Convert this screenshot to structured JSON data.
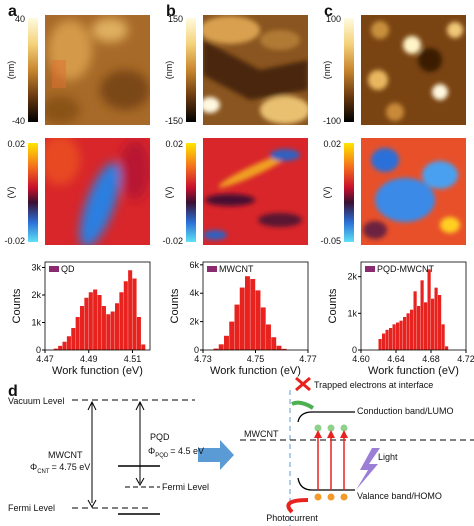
{
  "panels": [
    {
      "label": "a",
      "height_bar": {
        "ticks": [
          40,
          -40
        ],
        "unit": "(nm)"
      },
      "potential_bar": {
        "ticks": [
          0.02,
          -0.02
        ],
        "unit": "(V)"
      },
      "histogram": {
        "legend": "QD",
        "ylabel": "Counts",
        "xlabel": "Work function (eV)",
        "color": "#e8231f",
        "legend_color": "#8b2a6e",
        "xlim": [
          4.47,
          4.518
        ],
        "ylim": [
          0,
          3200
        ],
        "xticks": [
          4.47,
          4.49,
          4.51
        ],
        "yticks": [
          0,
          {
            "value": 1000,
            "label": "1k"
          },
          {
            "value": 2000,
            "label": "2k"
          },
          {
            "value": 3000,
            "label": "3k"
          }
        ],
        "bins": [
          4.474,
          4.476,
          4.478,
          4.48,
          4.482,
          4.484,
          4.486,
          4.488,
          4.49,
          4.492,
          4.494,
          4.496,
          4.498,
          4.5,
          4.502,
          4.504,
          4.506,
          4.508,
          4.51,
          4.512,
          4.514,
          4.516
        ],
        "counts": [
          50,
          150,
          300,
          500,
          800,
          1200,
          1600,
          1900,
          2100,
          2200,
          2000,
          1600,
          1300,
          1400,
          1700,
          2100,
          2500,
          2900,
          2600,
          1200,
          200
        ]
      }
    },
    {
      "label": "b",
      "height_bar": {
        "ticks": [
          150,
          -150
        ],
        "unit": "(nm)"
      },
      "potential_bar": {
        "ticks": [
          0.02,
          -0.02
        ],
        "unit": "(V)"
      },
      "histogram": {
        "legend": "MWCNT",
        "ylabel": "Counts",
        "xlabel": "Work function (eV)",
        "color": "#e8231f",
        "legend_color": "#8b2a6e",
        "xlim": [
          4.73,
          4.77
        ],
        "ylim": [
          0,
          6200
        ],
        "xticks": [
          4.73,
          4.75,
          4.77
        ],
        "yticks": [
          0,
          {
            "value": 2000,
            "label": "2k"
          },
          {
            "value": 4000,
            "label": "4k"
          },
          {
            "value": 6000,
            "label": "6k"
          }
        ],
        "bins": [
          4.734,
          4.736,
          4.738,
          4.74,
          4.742,
          4.744,
          4.746,
          4.748,
          4.75,
          4.752,
          4.754,
          4.756,
          4.758,
          4.76,
          4.762
        ],
        "counts": [
          100,
          400,
          1000,
          2000,
          3200,
          4400,
          5200,
          5000,
          4200,
          3000,
          1800,
          900,
          300,
          80
        ]
      }
    },
    {
      "label": "c",
      "height_bar": {
        "ticks": [
          100,
          -100
        ],
        "unit": "(nm)"
      },
      "potential_bar": {
        "ticks": [
          0.02,
          -0.05
        ],
        "unit": "(V)"
      },
      "histogram": {
        "legend": "PQD-MWCNT",
        "ylabel": "Counts",
        "xlabel": "Work function (eV)",
        "color": "#e8231f",
        "legend_color": "#8b2a6e",
        "xlim": [
          4.6,
          4.72
        ],
        "ylim": [
          0,
          2400
        ],
        "xticks": [
          {
            "value": 4.6,
            "label": "4.60"
          },
          4.64,
          4.68,
          4.72
        ],
        "yticks": [
          0,
          {
            "value": 1000,
            "label": "1k"
          },
          {
            "value": 2000,
            "label": "2k"
          }
        ],
        "bins": [
          4.62,
          4.624,
          4.628,
          4.632,
          4.636,
          4.64,
          4.644,
          4.648,
          4.652,
          4.656,
          4.66,
          4.664,
          4.668,
          4.672,
          4.676,
          4.68,
          4.684,
          4.688,
          4.692,
          4.696,
          4.7
        ],
        "counts": [
          300,
          450,
          550,
          600,
          700,
          750,
          800,
          900,
          1000,
          1100,
          1600,
          1200,
          1900,
          1300,
          2200,
          1400,
          1700,
          1500,
          700,
          100
        ]
      }
    }
  ],
  "diagram": {
    "label": "d",
    "vacuum_level": "Vacuum Level",
    "mwcnt": {
      "name": "MWCNT",
      "phi": "Φ",
      "phi_sub": "CNT",
      "phi_value": "= 4.75 eV",
      "fermi": "Fermi Level"
    },
    "pqd": {
      "name": "PQD",
      "phi": "Φ",
      "phi_sub": "PQD",
      "phi_value": "= 4.5 eV",
      "fermi": "Fermi Level"
    },
    "interface": {
      "trapped": "Trapped electrons at interface",
      "conduction": "Conduction band/LUMO",
      "mwcnt": "MWCNT",
      "light": "Light",
      "valence": "Valance band/HOMO",
      "photocurrent": "Photocurrent"
    }
  }
}
